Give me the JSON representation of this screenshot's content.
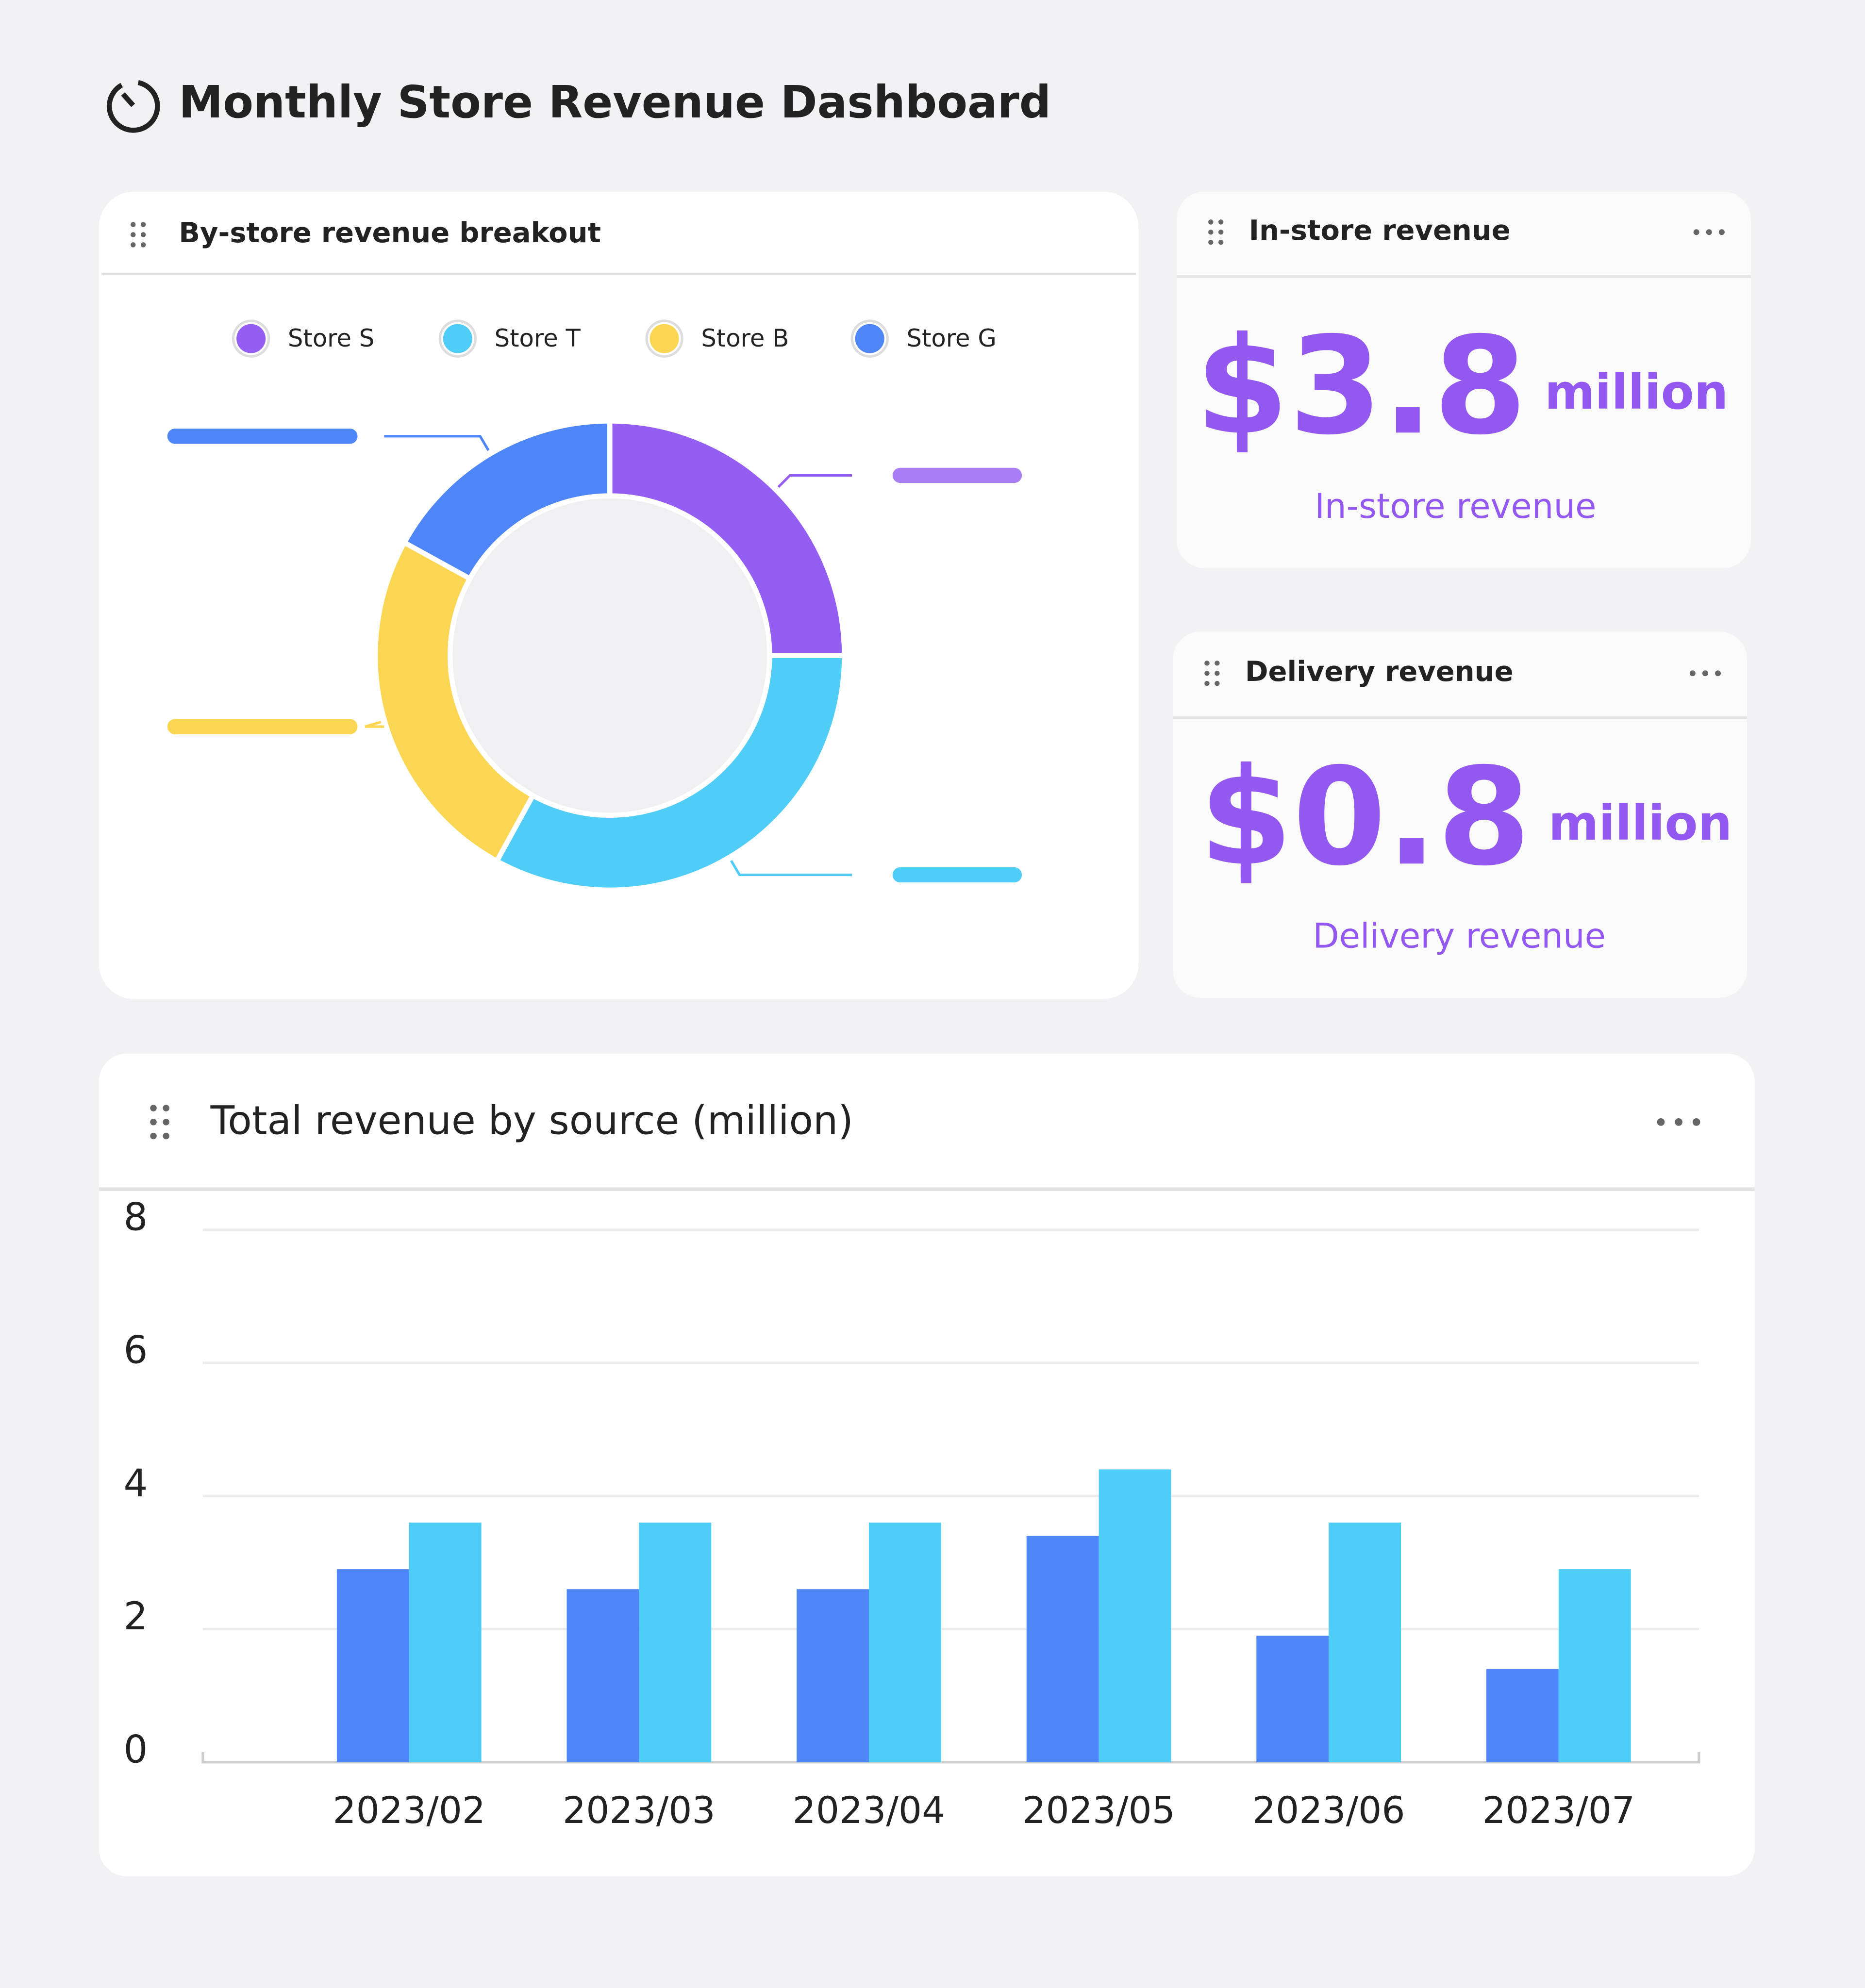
{
  "header": {
    "title": "Monthly Store Revenue Dashboard"
  },
  "cards": [
    {
      "title": "In-store revenue",
      "value": "$3.8",
      "unit": "million",
      "caption": "In-store revenue"
    },
    {
      "title": "Delivery revenue",
      "value": "$0.8",
      "unit": "million",
      "caption": "Delivery revenue"
    }
  ],
  "chart_data": [
    {
      "type": "donut",
      "title": "By-store revenue breakout",
      "categories": [
        "Store S",
        "Store T",
        "Store B",
        "Store G"
      ],
      "values": [
        25,
        33,
        25,
        17
      ],
      "colors": [
        "#945ef2",
        "#4fcdf7",
        "#fad653",
        "#4f86f7"
      ]
    },
    {
      "type": "bar",
      "title": "Total revenue by source (million)",
      "categories": [
        "2023/02",
        "2023/03",
        "2023/04",
        "2023/05",
        "2023/06",
        "2023/07"
      ],
      "series": [
        {
          "color": "#4f86f9",
          "values": [
            2.9,
            2.6,
            2.6,
            3.4,
            1.9,
            1.4
          ]
        },
        {
          "color": "#4fcdf9",
          "values": [
            3.6,
            3.6,
            3.6,
            4.4,
            3.6,
            2.9
          ]
        }
      ],
      "ylim": [
        0,
        8
      ],
      "yticks": [
        0,
        2,
        4,
        6,
        8
      ],
      "grid": true
    }
  ]
}
